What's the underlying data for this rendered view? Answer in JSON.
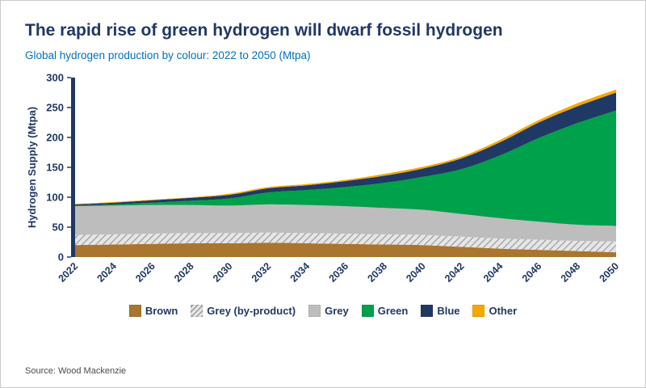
{
  "title": "The rapid rise of green hydrogen will dwarf fossil hydrogen",
  "subtitle": "Global hydrogen production by colour: 2022 to 2050 (Mtpa)",
  "source": "Source: Wood Mackenzie",
  "colors": {
    "title": "#203864",
    "subtitle": "#0070c0",
    "axis": "#203864",
    "axis_bar": "#203864"
  },
  "chart_data": {
    "type": "area",
    "stacked": true,
    "title": "Global hydrogen production by colour: 2022 to 2050 (Mtpa)",
    "xlabel": "",
    "ylabel": "Hydrogen Supply (Mtpa)",
    "ylim": [
      0,
      300
    ],
    "yticks": [
      0,
      50,
      100,
      150,
      200,
      250,
      300
    ],
    "grid": false,
    "legend_position": "bottom",
    "categories": [
      2022,
      2024,
      2026,
      2028,
      2030,
      2032,
      2034,
      2036,
      2038,
      2040,
      2042,
      2044,
      2046,
      2048,
      2050
    ],
    "series": [
      {
        "name": "Brown",
        "color": "#a9752f",
        "values": [
          20,
          21,
          22,
          23,
          23,
          24,
          23,
          22,
          21,
          20,
          17,
          14,
          12,
          10,
          8
        ]
      },
      {
        "name": "Grey (by-product)",
        "color": "#d0d0d0",
        "pattern": "hatch",
        "values": [
          17,
          17,
          17,
          17,
          17,
          17,
          17,
          17,
          17,
          17,
          17,
          17,
          17,
          17,
          18
        ]
      },
      {
        "name": "Grey",
        "color": "#bdbdbd",
        "values": [
          48,
          48,
          48,
          47,
          46,
          47,
          47,
          46,
          44,
          42,
          38,
          34,
          30,
          27,
          26
        ]
      },
      {
        "name": "Green",
        "color": "#00a14b",
        "values": [
          1,
          2,
          4,
          7,
          12,
          20,
          25,
          32,
          42,
          55,
          75,
          105,
          140,
          170,
          193
        ]
      },
      {
        "name": "Blue",
        "color": "#203864",
        "values": [
          2,
          3,
          4,
          5,
          6,
          7,
          8,
          10,
          12,
          14,
          18,
          22,
          26,
          28,
          30
        ]
      },
      {
        "name": "Other",
        "color": "#f5a800",
        "values": [
          1,
          1,
          1,
          1,
          2,
          2,
          2,
          2,
          3,
          3,
          3,
          4,
          4,
          5,
          5
        ]
      }
    ]
  }
}
